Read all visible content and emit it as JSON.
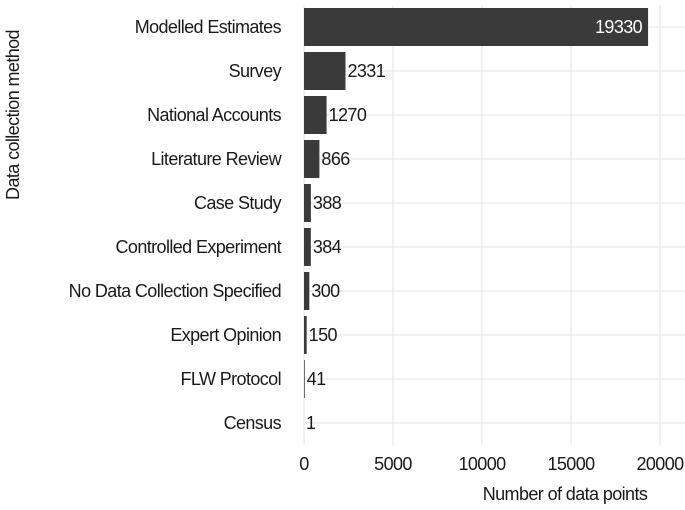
{
  "chart_data": {
    "type": "barh",
    "x_label": "Number of data points",
    "y_label": "Data collection method",
    "categories": [
      "Modelled Estimates",
      "Survey",
      "National Accounts",
      "Literature Review",
      "Case Study",
      "Controlled Experiment",
      "No Data Collection Specified",
      "Expert Opinion",
      "FLW Protocol",
      "Census"
    ],
    "values": [
      19330,
      2331,
      1270,
      866,
      388,
      384,
      300,
      150,
      41,
      1
    ],
    "color": "#3a3a3a",
    "xlim": [
      0,
      20000
    ],
    "xticks": [
      0,
      5000,
      10000,
      15000,
      20000
    ],
    "grid": true
  }
}
